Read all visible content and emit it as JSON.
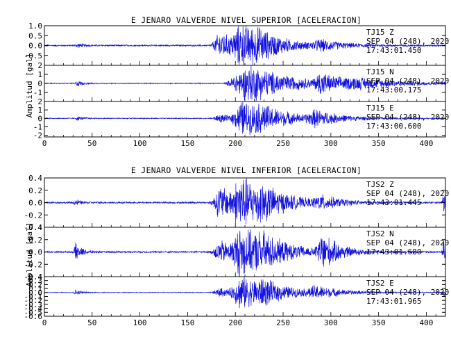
{
  "chart_data": [
    {
      "type": "line",
      "title": "E JENARO VALVERDE NIVEL SUPERIOR [ACELERACION]",
      "ylabel": "Amplitud [gal]",
      "xlim": [
        0,
        420
      ],
      "xticks": [
        0,
        50,
        100,
        150,
        200,
        250,
        300,
        350,
        400
      ],
      "panels": [
        {
          "station": "TJ15",
          "component": "Z",
          "date": "SEP 04 (248), 2020",
          "time": "17:43:01.450",
          "ylim": [
            -1.0,
            1.0
          ],
          "yticks": [
            -0.5,
            0.0,
            0.5,
            1.0
          ],
          "ytick_labels": [
            "-0.5",
            "0.0",
            "0.5",
            "1.0"
          ],
          "bursts": [
            {
              "center": 35,
              "width": 3,
              "amp": 0.12
            },
            {
              "center": 185,
              "width": 10,
              "amp": 0.75
            },
            {
              "center": 207,
              "width": 12,
              "amp": 1.0
            },
            {
              "center": 225,
              "width": 14,
              "amp": 0.4
            },
            {
              "center": 290,
              "width": 12,
              "amp": 0.25
            }
          ],
          "noise": 0.04
        },
        {
          "station": "TJ15",
          "component": "N",
          "date": "SEP 04 (248), 2020",
          "time": "17:43:00.175",
          "ylim": [
            -2.0,
            2.0
          ],
          "yticks": [
            -1,
            0,
            1,
            2
          ],
          "ytick_labels": [
            "-1",
            "0",
            "1",
            "2"
          ],
          "bursts": [
            {
              "center": 35,
              "width": 3,
              "amp": 0.3
            },
            {
              "center": 200,
              "width": 10,
              "amp": 0.8
            },
            {
              "center": 218,
              "width": 20,
              "amp": 2.0
            },
            {
              "center": 290,
              "width": 8,
              "amp": 1.1
            },
            {
              "center": 330,
              "width": 25,
              "amp": 0.5
            }
          ],
          "noise": 0.06
        },
        {
          "station": "TJ15",
          "component": "E",
          "date": "SEP 04 (248), 2020",
          "time": "17:43:00.600",
          "ylim": [
            -2.2,
            2.0
          ],
          "yticks": [
            -2,
            -1,
            0,
            1,
            2
          ],
          "ytick_labels": [
            "-2",
            "-1",
            "0",
            "1",
            "2"
          ],
          "bursts": [
            {
              "center": 35,
              "width": 3,
              "amp": 0.25
            },
            {
              "center": 185,
              "width": 10,
              "amp": 0.5
            },
            {
              "center": 208,
              "width": 12,
              "amp": 2.2
            },
            {
              "center": 230,
              "width": 16,
              "amp": 0.9
            },
            {
              "center": 285,
              "width": 12,
              "amp": 0.9
            }
          ],
          "noise": 0.06
        }
      ],
      "xtick_labels": [
        "0",
        "50",
        "100",
        "150",
        "200",
        "250",
        "300",
        "350",
        "400"
      ],
      "line_color": "#1010e0"
    },
    {
      "type": "line",
      "title": "E JENARO VALVERDE NIVEL INFERIOR [ACELERACION]",
      "ylabel": "Amplitud [gal]",
      "xlim": [
        0,
        420
      ],
      "xticks": [
        0,
        50,
        100,
        150,
        200,
        250,
        300,
        350,
        400
      ],
      "panels": [
        {
          "station": "TJS2",
          "component": "Z",
          "date": "SEP 04 (248), 2020",
          "time": "17:43:01.445",
          "ylim": [
            -0.4,
            0.4
          ],
          "yticks": [
            -0.4,
            -0.2,
            0.0,
            0.2,
            0.4
          ],
          "ytick_labels": [
            "-0.4",
            "-0.2",
            "0.0",
            "0.2",
            "0.4"
          ],
          "bursts": [
            {
              "center": 33,
              "width": 3,
              "amp": 0.05
            },
            {
              "center": 185,
              "width": 10,
              "amp": 0.3
            },
            {
              "center": 207,
              "width": 12,
              "amp": 0.4
            },
            {
              "center": 230,
              "width": 14,
              "amp": 0.15
            },
            {
              "center": 290,
              "width": 10,
              "amp": 0.1
            },
            {
              "center": 418,
              "width": 2,
              "amp": 0.18
            }
          ],
          "noise": 0.015
        },
        {
          "station": "TJS2",
          "component": "N",
          "date": "SEP 04 (248), 2020",
          "time": "17:43:01.680",
          "ylim": [
            -0.4,
            0.4
          ],
          "yticks": [
            -0.4,
            -0.2,
            0.0,
            0.2,
            0.4
          ],
          "ytick_labels": [
            "-0.4",
            "-0.2",
            "0.0",
            "0.2",
            "0.4"
          ],
          "bursts": [
            {
              "center": 33,
              "width": 3,
              "amp": 0.15
            },
            {
              "center": 185,
              "width": 10,
              "amp": 0.2
            },
            {
              "center": 207,
              "width": 12,
              "amp": 0.4
            },
            {
              "center": 230,
              "width": 14,
              "amp": 0.18
            },
            {
              "center": 292,
              "width": 8,
              "amp": 0.3
            },
            {
              "center": 418,
              "width": 2,
              "amp": 0.25
            }
          ],
          "noise": 0.015
        },
        {
          "station": "TJS2",
          "component": "E",
          "date": "SEP 04 (248), 2020",
          "time": "17:43:01.965",
          "ylim": [
            -0.6,
            0.4
          ],
          "yticks": [
            -0.6,
            -0.5,
            -0.4,
            -0.3,
            -0.2,
            -0.1,
            0.0,
            0.1,
            0.2,
            0.3,
            0.4
          ],
          "ytick_labels": [
            "-0.6",
            "-0.5",
            "-0.4",
            "-0.3",
            "-0.2",
            "-0.1",
            "0.0",
            "0.1",
            "0.2",
            "0.3",
            "0.4"
          ],
          "bursts": [
            {
              "center": 33,
              "width": 3,
              "amp": 0.07
            },
            {
              "center": 185,
              "width": 10,
              "amp": 0.12
            },
            {
              "center": 207,
              "width": 12,
              "amp": 0.45
            },
            {
              "center": 230,
              "width": 14,
              "amp": 0.2
            },
            {
              "center": 285,
              "width": 12,
              "amp": 0.15
            },
            {
              "center": 418,
              "width": 2,
              "amp": 0.1
            }
          ],
          "noise": 0.01
        }
      ],
      "xtick_labels": [
        "0",
        "50",
        "100",
        "150",
        "200",
        "250",
        "300",
        "350",
        "400"
      ],
      "line_color": "#1010e0"
    }
  ]
}
